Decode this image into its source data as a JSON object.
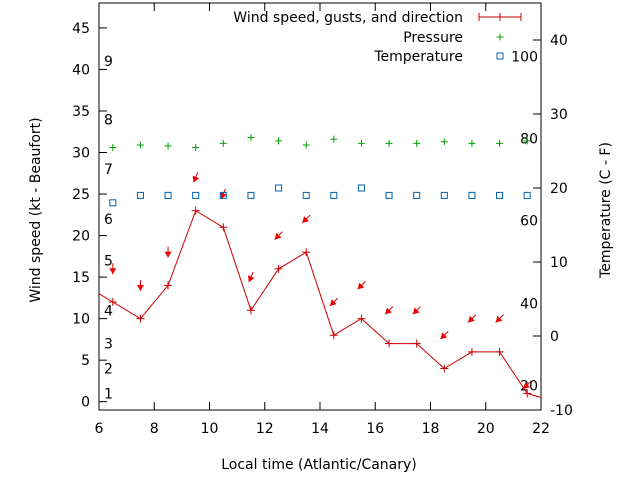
{
  "chart_data": {
    "type": "line",
    "title": "",
    "xlabel": "Local time (Atlantic/Canary)",
    "ylabel": "Wind speed (kt - Beaufort)",
    "y2label": "Temperature (C - F)",
    "xlim": [
      6,
      22
    ],
    "ylim": [
      -1,
      48
    ],
    "y2lim": [
      -10,
      45
    ],
    "x_ticks": [
      "6",
      "8",
      "10",
      "12",
      "14",
      "16",
      "18",
      "20",
      "22"
    ],
    "y_ticks": [
      "0",
      "5",
      "10",
      "15",
      "20",
      "25",
      "30",
      "35",
      "40",
      "45"
    ],
    "y2_ticks": [
      "-10",
      "0",
      "10",
      "20",
      "30",
      "40"
    ],
    "beaufort_labels": [
      {
        "label": "1",
        "y": 1
      },
      {
        "label": "2",
        "y": 4
      },
      {
        "label": "3",
        "y": 7
      },
      {
        "label": "4",
        "y": 11
      },
      {
        "label": "5",
        "y": 17
      },
      {
        "label": "6",
        "y": 22
      },
      {
        "label": "7",
        "y": 28
      },
      {
        "label": "8",
        "y": 34
      },
      {
        "label": "9",
        "y": 41
      }
    ],
    "fahrenheit_labels": [
      {
        "label": "20",
        "y2": -6.7
      },
      {
        "label": "40",
        "y2": 4.4
      },
      {
        "label": "60",
        "y2": 15.6
      },
      {
        "label": "80",
        "y2": 26.7
      },
      {
        "label": "100",
        "y2": 37.8
      }
    ],
    "legend": {
      "placement": "top-right",
      "entries": [
        "Wind speed, gusts, and direction",
        "Pressure",
        "Temperature"
      ]
    },
    "series": [
      {
        "name": "Wind speed, gusts, and direction",
        "color": "#cc0000",
        "x": [
          6,
          6.5,
          7.5,
          8.5,
          9.5,
          10.5,
          11.5,
          12.5,
          13.5,
          14.5,
          15.5,
          16.5,
          17.5,
          18.5,
          19.5,
          20.5,
          21.5,
          22
        ],
        "values": [
          13,
          12,
          10,
          14,
          23,
          21,
          11,
          16,
          18,
          8,
          10,
          7,
          7,
          4,
          6,
          6,
          1,
          0.5
        ],
        "marker_x": [
          6.5,
          7.5,
          8.5,
          9.5,
          10.5,
          11.5,
          12.5,
          13.5,
          14.5,
          15.5,
          16.5,
          17.5,
          18.5,
          19.5,
          20.5,
          21.5
        ],
        "direction_arrows": [
          {
            "x": 6.5,
            "y": 16,
            "dir": "south"
          },
          {
            "x": 7.5,
            "y": 14,
            "dir": "south"
          },
          {
            "x": 8.5,
            "y": 18,
            "dir": "south"
          },
          {
            "x": 9.5,
            "y": 27,
            "dir": "south-southwest"
          },
          {
            "x": 10.5,
            "y": 25,
            "dir": "south-southwest"
          },
          {
            "x": 11.5,
            "y": 15,
            "dir": "south-southwest"
          },
          {
            "x": 12.5,
            "y": 20,
            "dir": "southwest"
          },
          {
            "x": 13.5,
            "y": 22,
            "dir": "southwest"
          },
          {
            "x": 14.5,
            "y": 12,
            "dir": "southwest"
          },
          {
            "x": 15.5,
            "y": 14,
            "dir": "southwest"
          },
          {
            "x": 16.5,
            "y": 11,
            "dir": "southwest"
          },
          {
            "x": 17.5,
            "y": 11,
            "dir": "southwest"
          },
          {
            "x": 18.5,
            "y": 8,
            "dir": "southwest"
          },
          {
            "x": 19.5,
            "y": 10,
            "dir": "southwest"
          },
          {
            "x": 20.5,
            "y": 10,
            "dir": "southwest"
          },
          {
            "x": 21.5,
            "y": 2,
            "dir": "southwest"
          }
        ]
      },
      {
        "name": "Pressure",
        "color": "#00a000",
        "x": [
          6.5,
          7.5,
          8.5,
          9.5,
          10.5,
          11.5,
          12.5,
          13.5,
          14.5,
          15.5,
          16.5,
          17.5,
          18.5,
          19.5,
          20.5,
          21.5
        ],
        "values": [
          30.6,
          30.9,
          30.8,
          30.6,
          31.1,
          31.8,
          31.4,
          30.9,
          31.6,
          31.1,
          31.1,
          31.1,
          31.3,
          31.1,
          31.1,
          31.4
        ]
      },
      {
        "name": "Temperature",
        "color": "#0060ad",
        "axis": "y2",
        "x": [
          6.5,
          7.5,
          8.5,
          9.5,
          10.5,
          11.5,
          12.5,
          13.5,
          14.5,
          15.5,
          16.5,
          17.5,
          18.5,
          19.5,
          20.5,
          21.5
        ],
        "values": [
          18,
          19,
          19,
          19,
          19,
          19,
          20,
          19,
          19,
          20,
          19,
          19,
          19,
          19,
          19,
          19
        ]
      }
    ]
  }
}
